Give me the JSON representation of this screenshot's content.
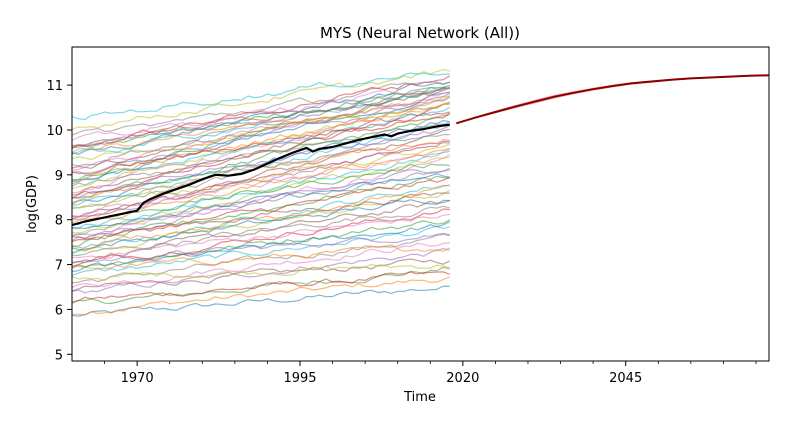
{
  "chart_data": {
    "type": "line",
    "title": "MYS (Neural Network (All))",
    "xlabel": "Time",
    "ylabel": "log(GDP)",
    "xlim": [
      1960,
      2067
    ],
    "ylim": [
      4.85,
      11.85
    ],
    "x_ticks": [
      1970,
      1995,
      2020,
      2045
    ],
    "x_tick_labels": [
      "1970",
      "1995",
      "2020",
      "2045"
    ],
    "y_ticks": [
      5,
      6,
      7,
      8,
      9,
      10,
      11
    ],
    "y_tick_labels": [
      "5",
      "6",
      "7",
      "8",
      "9",
      "10",
      "11"
    ],
    "grid": false,
    "legend": "none",
    "background_series": {
      "description_count": 70,
      "x_range": [
        1960,
        2018
      ],
      "palette": [
        "#1f77b4",
        "#ff7f0e",
        "#2ca02c",
        "#d62728",
        "#9467bd",
        "#8c564b",
        "#e377c2",
        "#7f7f7f",
        "#bcbd22",
        "#17becf"
      ],
      "opacity": 0.55,
      "start_values": [
        5.85,
        5.95,
        6.1,
        6.2,
        6.35,
        6.45,
        6.5,
        6.6,
        6.7,
        6.75,
        6.85,
        6.9,
        6.95,
        7.0,
        7.05,
        7.1,
        7.15,
        7.2,
        7.25,
        7.3,
        7.35,
        7.4,
        7.45,
        7.5,
        7.55,
        7.6,
        7.65,
        7.7,
        7.75,
        7.8,
        7.85,
        7.9,
        7.95,
        8.0,
        8.05,
        8.1,
        8.15,
        8.2,
        8.25,
        8.3,
        8.35,
        8.4,
        8.45,
        8.5,
        8.55,
        8.6,
        8.65,
        8.7,
        8.75,
        8.8,
        8.85,
        8.9,
        8.95,
        9.0,
        9.05,
        9.1,
        9.15,
        9.2,
        9.3,
        9.4,
        9.45,
        9.5,
        9.55,
        9.6,
        9.65,
        9.7,
        9.75,
        9.85,
        10.05,
        10.25
      ],
      "end_values": [
        6.5,
        6.7,
        6.9,
        6.8,
        7.3,
        7.1,
        7.5,
        7.6,
        7.0,
        7.8,
        7.9,
        7.4,
        8.0,
        8.2,
        7.7,
        8.4,
        8.1,
        8.3,
        8.6,
        8.8,
        8.5,
        8.7,
        9.0,
        8.9,
        9.2,
        8.6,
        9.3,
        9.1,
        9.4,
        9.5,
        9.0,
        9.6,
        9.3,
        9.8,
        9.7,
        9.9,
        9.5,
        10.0,
        9.6,
        10.1,
        10.2,
        9.8,
        10.3,
        10.4,
        10.0,
        10.5,
        10.6,
        10.2,
        10.7,
        10.5,
        10.8,
        10.6,
        10.9,
        10.4,
        10.7,
        10.9,
        10.8,
        11.0,
        10.6,
        10.9,
        11.1,
        10.7,
        11.0,
        11.2,
        10.8,
        10.9,
        11.0,
        11.1,
        11.3,
        11.35
      ]
    },
    "highlight_series": {
      "name": "MYS",
      "color": "#000000",
      "x": [
        1960,
        1962,
        1964,
        1966,
        1968,
        1970,
        1971,
        1972,
        1974,
        1976,
        1978,
        1980,
        1982,
        1984,
        1986,
        1988,
        1990,
        1992,
        1994,
        1996,
        1997,
        1998,
        2000,
        2002,
        2004,
        2006,
        2008,
        2009,
        2010,
        2012,
        2014,
        2016,
        2018
      ],
      "values": [
        7.88,
        7.96,
        8.02,
        8.08,
        8.14,
        8.2,
        8.38,
        8.46,
        8.58,
        8.68,
        8.78,
        8.9,
        9.0,
        8.98,
        9.02,
        9.12,
        9.25,
        9.38,
        9.5,
        9.6,
        9.52,
        9.58,
        9.62,
        9.7,
        9.78,
        9.84,
        9.9,
        9.86,
        9.92,
        9.98,
        10.02,
        10.08,
        10.12
      ]
    },
    "forecast_series": {
      "name": "forecast",
      "color": "#8b0000",
      "band_color": "#f08080",
      "x": [
        2019,
        2022,
        2025,
        2028,
        2031,
        2034,
        2037,
        2040,
        2043,
        2046,
        2049,
        2052,
        2055,
        2058,
        2061,
        2064,
        2067
      ],
      "values": [
        10.15,
        10.28,
        10.4,
        10.52,
        10.63,
        10.74,
        10.83,
        10.91,
        10.98,
        11.04,
        11.08,
        11.12,
        11.15,
        11.17,
        11.19,
        11.21,
        11.22
      ],
      "band_halfwidth": [
        0.01,
        0.02,
        0.03,
        0.035,
        0.04,
        0.04,
        0.035,
        0.03,
        0.03,
        0.025,
        0.025,
        0.02,
        0.02,
        0.02,
        0.02,
        0.02,
        0.02
      ]
    }
  }
}
